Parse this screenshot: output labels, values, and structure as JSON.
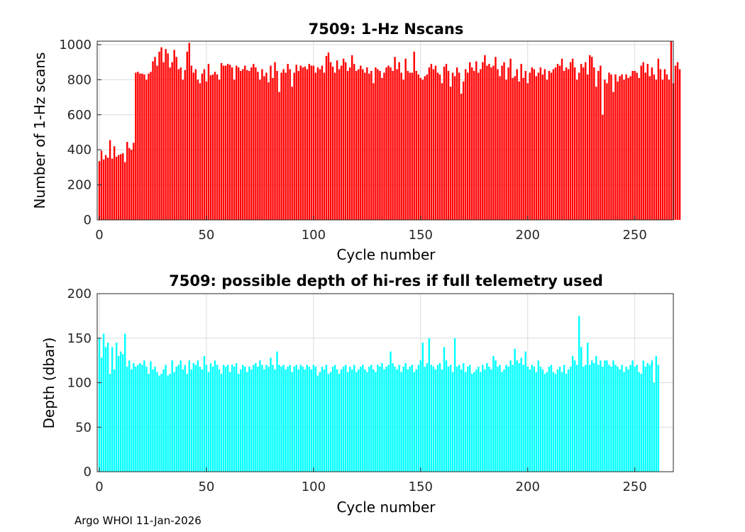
{
  "footer": "Argo WHOI 11-Jan-2026",
  "chart_data": [
    {
      "type": "bar",
      "title": "7509: 1-Hz Nscans",
      "xlabel": "Cycle number",
      "ylabel": "Number of 1-Hz scans",
      "xlim": [
        -1,
        268
      ],
      "ylim": [
        0,
        1020
      ],
      "xticks": [
        0,
        50,
        100,
        150,
        200,
        250
      ],
      "yticks": [
        0,
        200,
        400,
        600,
        800,
        1000
      ],
      "grid": true,
      "color": "#ff0000",
      "x_start": 0,
      "values": [
        335,
        395,
        345,
        370,
        355,
        455,
        350,
        420,
        360,
        370,
        375,
        380,
        330,
        445,
        410,
        400,
        440,
        840,
        845,
        835,
        835,
        830,
        800,
        835,
        845,
        905,
        930,
        880,
        960,
        985,
        900,
        975,
        950,
        870,
        900,
        970,
        930,
        860,
        870,
        800,
        855,
        960,
        1010,
        880,
        840,
        860,
        800,
        780,
        835,
        860,
        790,
        890,
        825,
        830,
        845,
        830,
        800,
        895,
        880,
        880,
        890,
        885,
        870,
        800,
        880,
        870,
        850,
        860,
        880,
        855,
        850,
        870,
        890,
        870,
        845,
        800,
        860,
        820,
        840,
        785,
        880,
        810,
        900,
        850,
        730,
        840,
        860,
        840,
        890,
        860,
        760,
        840,
        885,
        850,
        880,
        870,
        875,
        860,
        890,
        880,
        880,
        840,
        870,
        860,
        880,
        840,
        935,
        955,
        900,
        875,
        840,
        910,
        860,
        880,
        920,
        900,
        850,
        870,
        940,
        890,
        850,
        860,
        880,
        860,
        840,
        870,
        835,
        850,
        780,
        870,
        860,
        850,
        810,
        840,
        870,
        880,
        870,
        850,
        930,
        860,
        900,
        840,
        800,
        920,
        850,
        840,
        840,
        960,
        850,
        830,
        810,
        800,
        820,
        830,
        870,
        890,
        860,
        880,
        840,
        830,
        780,
        875,
        890,
        850,
        760,
        840,
        820,
        870,
        840,
        720,
        790,
        860,
        840,
        900,
        870,
        850,
        905,
        840,
        860,
        900,
        940,
        880,
        890,
        870,
        880,
        930,
        860,
        820,
        880,
        900,
        800,
        870,
        920,
        810,
        820,
        860,
        790,
        890,
        810,
        850,
        780,
        840,
        870,
        860,
        820,
        840,
        870,
        830,
        860,
        800,
        850,
        840,
        860,
        870,
        890,
        880,
        920,
        850,
        870,
        860,
        900,
        920,
        870,
        800,
        840,
        890,
        870,
        900,
        830,
        940,
        930,
        870,
        760,
        850,
        880,
        600,
        800,
        780,
        840,
        830,
        730,
        830,
        790,
        820,
        830,
        800,
        830,
        810,
        820,
        850,
        850,
        840,
        810,
        880,
        900,
        840,
        890,
        820,
        870,
        830,
        800,
        920,
        860,
        800,
        860,
        830,
        800,
        1020,
        780,
        880,
        900,
        860
      ]
    },
    {
      "type": "bar",
      "title": "7509: possible depth of hi-res if full telemetry used",
      "xlabel": "Cycle number",
      "ylabel": "Depth (dbar)",
      "xlim": [
        -1,
        268
      ],
      "ylim": [
        0,
        200
      ],
      "xticks": [
        0,
        50,
        100,
        150,
        200,
        250
      ],
      "yticks": [
        0,
        50,
        100,
        150,
        200
      ],
      "grid": true,
      "color": "#00ffff",
      "x_start": 0,
      "values": [
        150,
        128,
        155,
        140,
        145,
        110,
        140,
        115,
        145,
        130,
        135,
        132,
        155,
        118,
        125,
        115,
        122,
        118,
        120,
        122,
        120,
        125,
        118,
        110,
        124,
        115,
        118,
        112,
        108,
        110,
        115,
        120,
        108,
        110,
        125,
        112,
        118,
        120,
        125,
        115,
        120,
        110,
        125,
        115,
        122,
        120,
        125,
        118,
        115,
        130,
        120,
        112,
        122,
        118,
        125,
        120,
        115,
        110,
        120,
        118,
        120,
        112,
        120,
        118,
        122,
        110,
        115,
        120,
        118,
        112,
        118,
        115,
        120,
        122,
        118,
        125,
        120,
        115,
        120,
        118,
        128,
        120,
        115,
        135,
        120,
        118,
        120,
        115,
        118,
        120,
        112,
        118,
        120,
        115,
        120,
        118,
        115,
        120,
        118,
        115,
        120,
        118,
        108,
        112,
        118,
        115,
        120,
        110,
        112,
        118,
        120,
        115,
        110,
        115,
        118,
        120,
        112,
        118,
        115,
        120,
        112,
        115,
        118,
        120,
        115,
        112,
        118,
        120,
        115,
        112,
        120,
        118,
        122,
        115,
        118,
        120,
        135,
        122,
        118,
        115,
        120,
        112,
        118,
        122,
        115,
        118,
        120,
        112,
        115,
        120,
        125,
        145,
        118,
        122,
        150,
        120,
        118,
        115,
        120,
        122,
        115,
        140,
        125,
        118,
        120,
        112,
        150,
        118,
        120,
        115,
        122,
        112,
        118,
        120,
        110,
        112,
        115,
        118,
        112,
        120,
        115,
        122,
        118,
        115,
        130,
        125,
        118,
        120,
        112,
        115,
        120,
        118,
        125,
        120,
        138,
        125,
        122,
        128,
        120,
        135,
        118,
        115,
        120,
        118,
        112,
        125,
        118,
        115,
        110,
        112,
        118,
        120,
        112,
        110,
        115,
        118,
        112,
        120,
        110,
        115,
        118,
        130,
        125,
        120,
        175,
        140,
        118,
        120,
        145,
        120,
        125,
        122,
        130,
        120,
        125,
        118,
        125,
        125,
        120,
        118,
        125,
        120,
        118,
        115,
        120,
        112,
        118,
        115,
        120,
        125,
        118,
        120,
        112,
        110,
        125,
        118,
        122,
        120,
        125,
        100,
        130,
        120
      ]
    }
  ]
}
